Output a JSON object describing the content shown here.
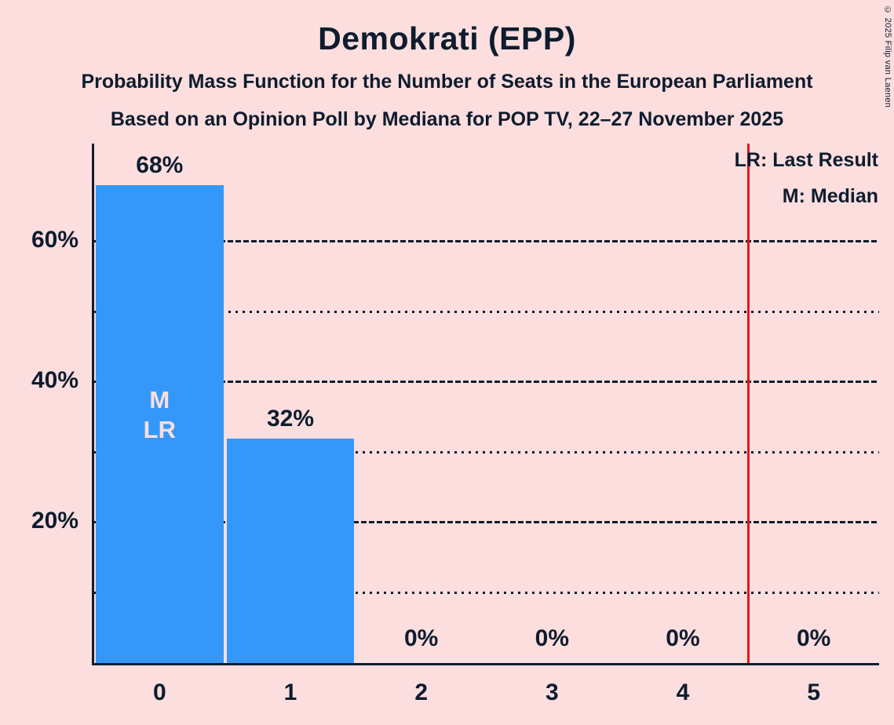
{
  "header": {
    "title": "Demokrati (EPP)",
    "subtitle1": "Probability Mass Function for the Number of Seats in the European Parliament",
    "subtitle2": "Based on an Opinion Poll by Mediana for POP TV, 22–27 November 2025"
  },
  "copyright": "© 2025 Filip van Laenen",
  "legend": {
    "lr": "LR: Last Result",
    "m": "M: Median"
  },
  "colors": {
    "background": "#fcdede",
    "text": "#0e1c2e",
    "bar": "#3498fa",
    "bar_annotation": "#fcdede",
    "lr_line": "#ec1313"
  },
  "chart_data": {
    "type": "bar",
    "title": "Demokrati (EPP)",
    "xlabel": "",
    "ylabel": "",
    "categories": [
      "0",
      "1",
      "2",
      "3",
      "4",
      "5"
    ],
    "values": [
      68,
      32,
      0,
      0,
      0,
      0
    ],
    "value_labels": [
      "68%",
      "32%",
      "0%",
      "0%",
      "0%",
      "0%"
    ],
    "ylim": [
      0,
      74
    ],
    "yticks": [
      {
        "pct": 20,
        "label": "20%"
      },
      {
        "pct": 40,
        "label": "40%"
      },
      {
        "pct": 60,
        "label": "60%"
      }
    ],
    "gridlines": [
      {
        "pct": 10,
        "style": "dotted"
      },
      {
        "pct": 20,
        "style": "dashed"
      },
      {
        "pct": 30,
        "style": "dotted"
      },
      {
        "pct": 40,
        "style": "dashed"
      },
      {
        "pct": 50,
        "style": "dotted"
      },
      {
        "pct": 60,
        "style": "dashed"
      }
    ],
    "last_result_x": 4.5,
    "median_bar": 0,
    "median_annotation_lines": [
      "M",
      "LR"
    ],
    "legend_position": "top-right",
    "grid": true
  }
}
